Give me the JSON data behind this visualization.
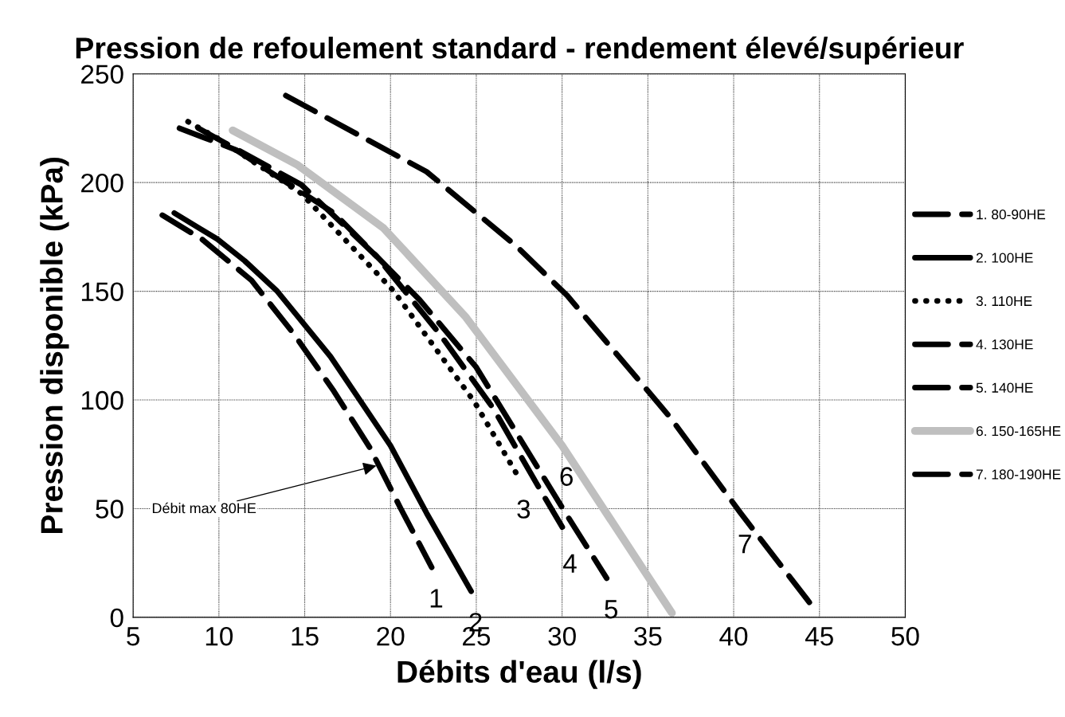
{
  "chart_data": {
    "type": "line",
    "title": "Pression de refoulement standard - rendement élevé/supérieur",
    "xlabel": "Débits d'eau (l/s)",
    "ylabel": "Pression disponible (kPa)",
    "xlim": [
      5,
      50
    ],
    "xticks": [
      5,
      10,
      15,
      20,
      25,
      30,
      35,
      40,
      45,
      50
    ],
    "ylim": [
      0,
      250
    ],
    "yticks": [
      0,
      50,
      100,
      150,
      200,
      250
    ],
    "grid": true,
    "legend": "right",
    "marker": "none",
    "series": [
      {
        "name": "1. 80-90HE",
        "color": "#000000",
        "line_style": "dashed",
        "x": [
          6.7,
          9.0,
          11.9,
          14.4,
          16.7,
          18.8,
          20.6,
          22.4
        ],
        "values": [
          185,
          174,
          155,
          130,
          104,
          78,
          50,
          23
        ]
      },
      {
        "name": "2. 100HE",
        "color": "#000000",
        "line_style": "solid",
        "x": [
          7.4,
          9.9,
          11.5,
          13.4,
          16.5,
          20.0,
          22.1,
          24.7
        ],
        "values": [
          186,
          174,
          164,
          150,
          120,
          79,
          48,
          12
        ]
      },
      {
        "name": "3. 110HE",
        "color": "#000000",
        "line_style": "dotted",
        "x": [
          8.2,
          10.0,
          14.8,
          20.2,
          24.9,
          27.5
        ],
        "values": [
          228,
          220,
          195,
          150,
          99,
          64
        ]
      },
      {
        "name": "4. 130HE",
        "color": "#000000",
        "line_style": "dashed",
        "x": [
          8.8,
          14.8,
          19.2,
          22.9,
          26.0,
          28.7,
          30.2
        ],
        "values": [
          225,
          199,
          166,
          130,
          96,
          59,
          39
        ]
      },
      {
        "name": "5. 140HE",
        "color": "#000000",
        "line_style": "dashed",
        "x": [
          7.7,
          11.0,
          16.7,
          21.7,
          25.0,
          30.2,
          32.6
        ],
        "values": [
          225,
          215,
          186,
          146,
          115,
          48,
          18
        ]
      },
      {
        "name": "6. 150-165HE",
        "color": "#bfbfbf",
        "line_style": "solid",
        "x": [
          10.8,
          14.6,
          19.6,
          24.4,
          30.0,
          36.4
        ],
        "values": [
          224,
          208,
          179,
          138,
          79,
          2
        ]
      },
      {
        "name": "7. 180-190HE",
        "color": "#000000",
        "line_style": "dashed",
        "x": [
          13.9,
          22.1,
          27.3,
          30.3,
          36.3,
          40.4,
          44.5
        ],
        "values": [
          240,
          205,
          171,
          148,
          92,
          48,
          6
        ]
      }
    ],
    "annotations": [
      {
        "text": "Débit max 80HE",
        "x": 19.3,
        "y": 70
      },
      {
        "text": "1",
        "x": 22.4,
        "y": 23
      },
      {
        "text": "2",
        "x": 24.7,
        "y": 12
      },
      {
        "text": "3",
        "x": 27.5,
        "y": 64
      },
      {
        "text": "4",
        "x": 30.2,
        "y": 39
      },
      {
        "text": "5",
        "x": 32.6,
        "y": 18
      },
      {
        "text": "6",
        "x": 30.0,
        "y": 79
      },
      {
        "text": "7",
        "x": 40.4,
        "y": 48
      }
    ]
  }
}
